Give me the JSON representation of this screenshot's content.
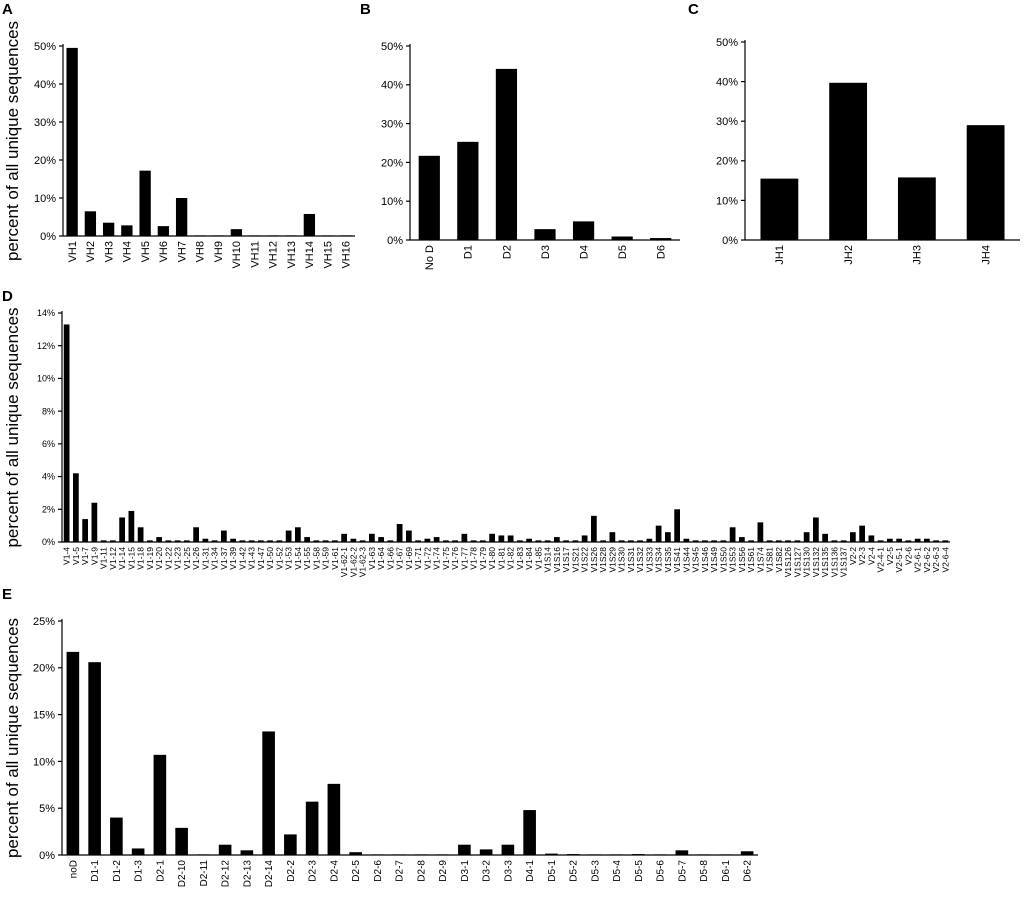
{
  "chart_data": [
    {
      "panel": "A",
      "type": "bar",
      "ylabel": "percent of all unique sequences",
      "yticks": [
        "0%",
        "10%",
        "20%",
        "30%",
        "40%",
        "50%"
      ],
      "ylim": [
        0,
        50
      ],
      "categories": [
        "VH1",
        "VH2",
        "VH3",
        "VH4",
        "VH5",
        "VH6",
        "VH7",
        "VH8",
        "VH9",
        "VH10",
        "VH11",
        "VH12",
        "VH13",
        "VH14",
        "VH15",
        "VH16"
      ],
      "values": [
        49.5,
        6.5,
        3.5,
        2.8,
        17.2,
        2.6,
        10.0,
        0.1,
        0.1,
        1.8,
        0.1,
        0.1,
        0.1,
        5.8,
        0.05,
        0.05
      ]
    },
    {
      "panel": "B",
      "type": "bar",
      "ylabel": "",
      "yticks": [
        "0%",
        "10%",
        "20%",
        "30%",
        "40%",
        "50%"
      ],
      "ylim": [
        0,
        50
      ],
      "categories": [
        "No D",
        "D1",
        "D2",
        "D3",
        "D4",
        "D5",
        "D6"
      ],
      "values": [
        21.7,
        25.3,
        44.1,
        2.8,
        4.8,
        0.9,
        0.5
      ]
    },
    {
      "panel": "C",
      "type": "bar",
      "ylabel": "",
      "yticks": [
        "0%",
        "10%",
        "20%",
        "30%",
        "40%",
        "50%"
      ],
      "ylim": [
        0,
        50
      ],
      "categories": [
        "JH1",
        "JH2",
        "JH3",
        "JH4"
      ],
      "values": [
        15.5,
        39.7,
        15.8,
        29.0
      ]
    },
    {
      "panel": "D",
      "type": "bar",
      "ylabel": "percent of all unique sequences",
      "yticks": [
        "0%",
        "2%",
        "4%",
        "6%",
        "8%",
        "10%",
        "12%",
        "14%"
      ],
      "ylim": [
        0,
        14
      ],
      "categories": [
        "V1-4",
        "V1-5",
        "V1-7",
        "V1-9",
        "V1-11",
        "V1-12",
        "V1-14",
        "V1-15",
        "V1-18",
        "V1-19",
        "V1-20",
        "V1-22",
        "V1-23",
        "V1-25",
        "V1-26",
        "V1-31",
        "V1-34",
        "V1-37",
        "V1-39",
        "V1-42",
        "V1-43",
        "V1-47",
        "V1-50",
        "V1-52",
        "V1-53",
        "V1-54",
        "V1-55",
        "V1-58",
        "V1-59",
        "V1-61",
        "V1-62-1",
        "V1-62-2",
        "V1-62-3",
        "V1-63",
        "V1-64",
        "V1-66",
        "V1-67",
        "V1-69",
        "V1-71",
        "V1-72",
        "V1-74",
        "V1-75",
        "V1-76",
        "V1-77",
        "V1-78",
        "V1-79",
        "V1-80",
        "V1-81",
        "V1-82",
        "V1-83",
        "V1-84",
        "V1-85",
        "V1S14",
        "V1S16",
        "V1S17",
        "V1S21",
        "V1S22",
        "V1S26",
        "V1S28",
        "V1S29",
        "V1S30",
        "V1S31",
        "V1S32",
        "V1S33",
        "V1S34",
        "V1S35",
        "V1S41",
        "V1S44",
        "V1S45",
        "V1S46",
        "V1S49",
        "V1S50",
        "V1S53",
        "V1S56",
        "V1S61",
        "V1S74",
        "V1S81",
        "V1S82",
        "V1S126",
        "V1S127",
        "V1S130",
        "V1S132",
        "V1S135",
        "V1S136",
        "V1S137",
        "V2-2",
        "V2-3",
        "V2-4",
        "V2-4-1",
        "V2-5",
        "V2-5-1",
        "V2-6",
        "V2-6-1",
        "V2-6-2",
        "V2-6-3",
        "V2-6-4"
      ],
      "values": [
        13.3,
        4.2,
        1.4,
        2.4,
        0.1,
        0.1,
        1.5,
        1.9,
        0.9,
        0.1,
        0.3,
        0.1,
        0.1,
        0.1,
        0.9,
        0.2,
        0.1,
        0.7,
        0.2,
        0.1,
        0.1,
        0.1,
        0.1,
        0.1,
        0.7,
        0.9,
        0.3,
        0.1,
        0.1,
        0.1,
        0.5,
        0.2,
        0.1,
        0.5,
        0.3,
        0.1,
        1.1,
        0.7,
        0.1,
        0.2,
        0.3,
        0.1,
        0.1,
        0.5,
        0.1,
        0.1,
        0.5,
        0.4,
        0.4,
        0.1,
        0.2,
        0.1,
        0.1,
        0.3,
        0.1,
        0.1,
        0.4,
        1.6,
        0.1,
        0.6,
        0.1,
        0.1,
        0.1,
        0.2,
        1.0,
        0.6,
        2.0,
        0.2,
        0.1,
        0.1,
        0.1,
        0.1,
        0.9,
        0.3,
        0.1,
        1.2,
        0.1,
        0.1,
        0.1,
        0.1,
        0.6,
        1.5,
        0.5,
        0.1,
        0.1,
        0.6,
        1.0,
        0.4,
        0.1,
        0.2,
        0.2,
        0.1,
        0.2,
        0.2,
        0.1,
        0.1
      ]
    },
    {
      "panel": "E",
      "type": "bar",
      "ylabel": "percent of all unique sequences",
      "yticks": [
        "0%",
        "5%",
        "10%",
        "15%",
        "20%",
        "25%"
      ],
      "ylim": [
        0,
        25
      ],
      "categories": [
        "noD",
        "D1-1",
        "D1-2",
        "D1-3",
        "D2-1",
        "D2-10",
        "D2-11",
        "D2-12",
        "D2-13",
        "D2-14",
        "D2-2",
        "D2-3",
        "D2-4",
        "D2-5",
        "D2-6",
        "D2-7",
        "D2-8",
        "D2-9",
        "D3-1",
        "D3-2",
        "D3-3",
        "D4-1",
        "D5-1",
        "D5-2",
        "D5-3",
        "D5-4",
        "D5-5",
        "D5-6",
        "D5-7",
        "D5-8",
        "D6-1",
        "D6-2"
      ],
      "values": [
        21.7,
        20.6,
        4.0,
        0.7,
        10.7,
        2.9,
        0.05,
        1.1,
        0.5,
        13.2,
        2.2,
        5.7,
        7.6,
        0.3,
        0.05,
        0.05,
        0.05,
        0.05,
        1.1,
        0.6,
        1.1,
        4.8,
        0.15,
        0.1,
        0.05,
        0.05,
        0.1,
        0.05,
        0.5,
        0.05,
        0.05,
        0.4
      ]
    }
  ]
}
